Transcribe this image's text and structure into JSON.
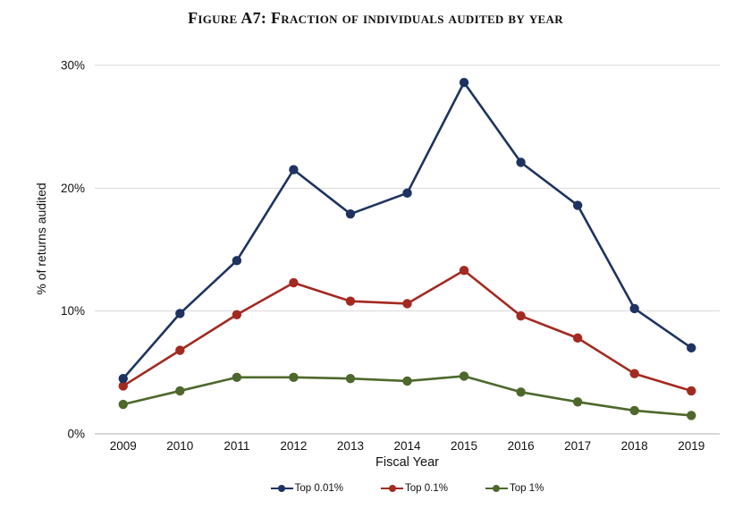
{
  "chart_data": {
    "type": "line",
    "title": "Figure A7: Fraction of individuals audited by year",
    "xlabel": "Fiscal Year",
    "ylabel": "% of returns audited",
    "categories": [
      "2009",
      "2010",
      "2011",
      "2012",
      "2013",
      "2014",
      "2015",
      "2016",
      "2017",
      "2018",
      "2019"
    ],
    "ylim": [
      0,
      30
    ],
    "yticks": [
      {
        "value": 0,
        "label": "0%"
      },
      {
        "value": 10,
        "label": "10%"
      },
      {
        "value": 20,
        "label": "20%"
      },
      {
        "value": 30,
        "label": "30%"
      }
    ],
    "grid": "horizontal-only",
    "legend_position": "bottom",
    "series": [
      {
        "name": "Top 0.01%",
        "color": "#1e3361",
        "values": [
          4.5,
          9.8,
          14.1,
          21.5,
          17.9,
          19.6,
          28.6,
          22.1,
          18.6,
          10.2,
          7.0
        ]
      },
      {
        "name": "Top 0.1%",
        "color": "#a32a21",
        "values": [
          3.9,
          6.8,
          9.7,
          12.3,
          10.8,
          10.6,
          13.3,
          9.6,
          7.8,
          4.9,
          3.5
        ]
      },
      {
        "name": "Top 1%",
        "color": "#4e682c",
        "values": [
          2.4,
          3.5,
          4.6,
          4.6,
          4.5,
          4.3,
          4.7,
          3.4,
          2.6,
          1.9,
          1.5
        ]
      }
    ]
  },
  "colors": {
    "gridline": "#d9d9d9",
    "axis_line": "#bfbfbf",
    "text": "#111111",
    "background": "#ffffff"
  }
}
